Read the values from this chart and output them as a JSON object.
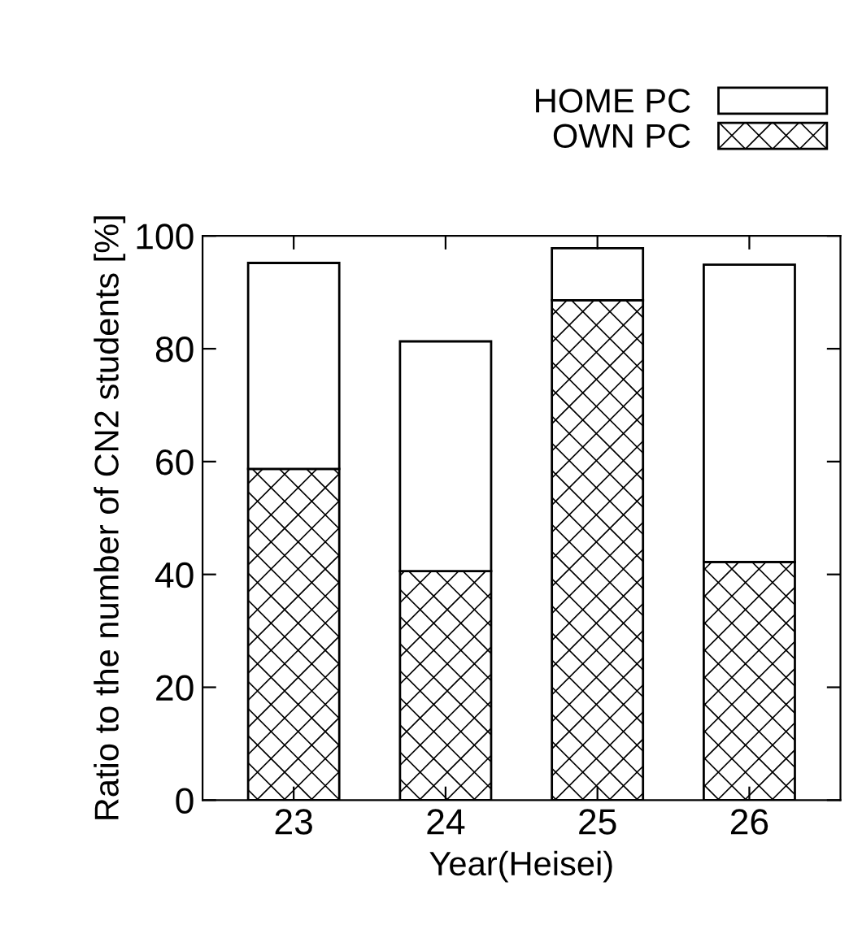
{
  "chart_data": {
    "type": "bar",
    "stacked": true,
    "xlabel": "Year(Heisei)",
    "ylabel": "Ratio to the number of CN2 students [%]",
    "categories": [
      "23",
      "24",
      "25",
      "26"
    ],
    "series": [
      {
        "name": "OWN PC",
        "color": "#000000",
        "values": [
          58.7,
          40.6,
          88.6,
          42.2
        ]
      },
      {
        "name": "HOME PC",
        "color": "#ffffff",
        "values": [
          36.5,
          40.7,
          9.2,
          52.7
        ]
      }
    ],
    "ylim": [
      0,
      100
    ],
    "yticks": [
      0,
      20,
      40,
      60,
      80,
      100
    ],
    "grid": false,
    "legend": "top right"
  }
}
